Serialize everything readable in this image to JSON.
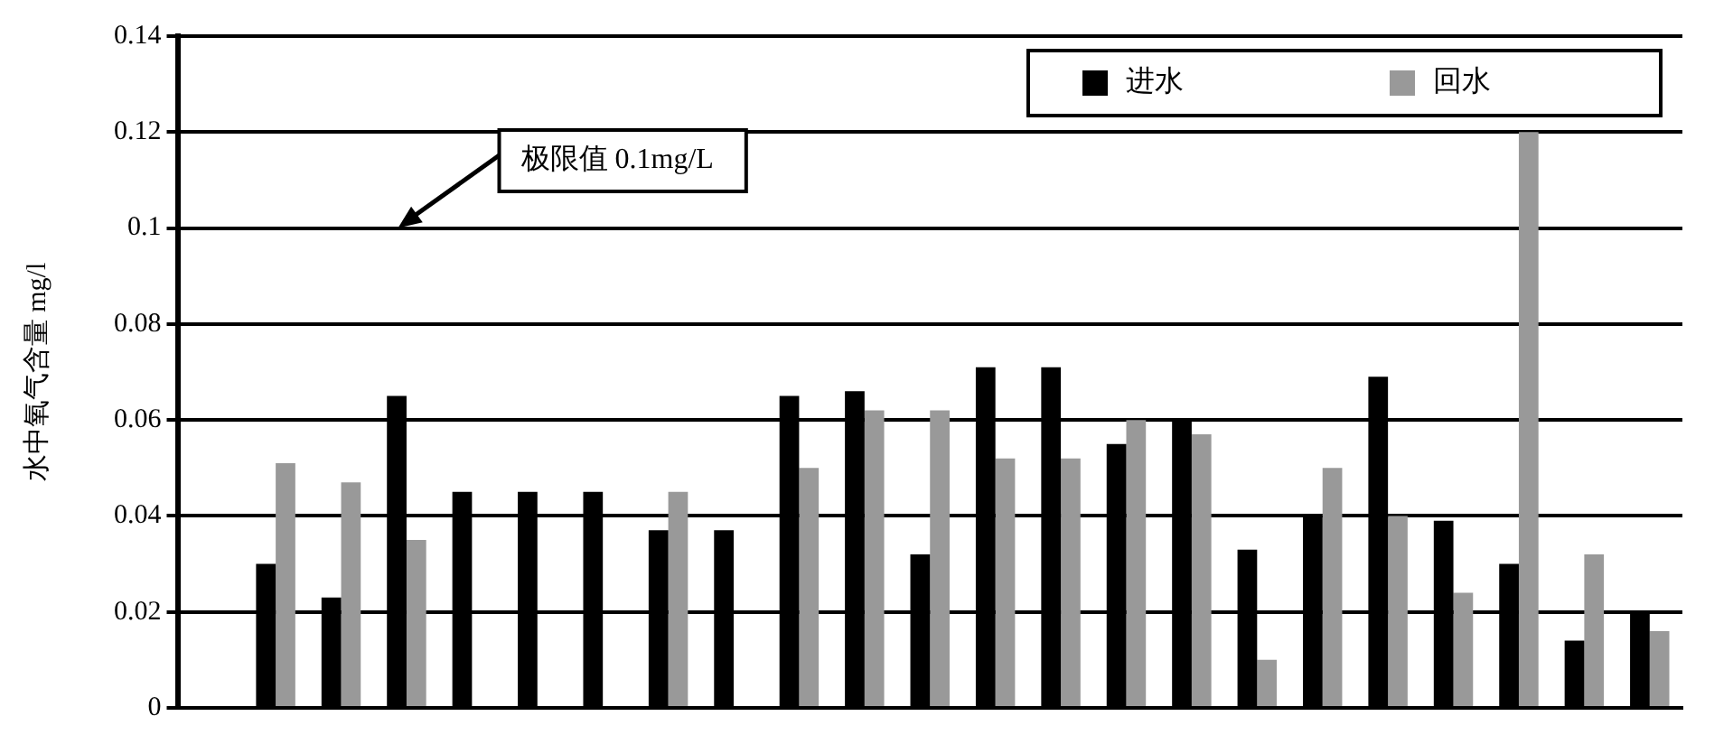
{
  "chart_data": {
    "type": "bar",
    "ylabel": "水中氧气含量 mg/l",
    "categories": [
      null,
      null,
      null,
      null,
      null,
      null,
      null,
      null,
      null,
      null,
      null,
      null,
      null,
      null,
      null,
      null,
      null,
      null,
      null,
      null,
      null,
      null,
      null
    ],
    "series": [
      {
        "name": "进水",
        "color": "#000000",
        "values": [
          null,
          0.03,
          0.023,
          0.065,
          0.045,
          0.045,
          0.045,
          0.037,
          0.037,
          0.065,
          0.066,
          0.032,
          0.071,
          0.071,
          0.055,
          0.06,
          0.033,
          0.04,
          0.069,
          0.039,
          0.03,
          0.014,
          0.02
        ]
      },
      {
        "name": "回水",
        "color": "#999999",
        "values": [
          null,
          0.051,
          0.047,
          0.035,
          null,
          null,
          null,
          0.045,
          null,
          0.05,
          0.062,
          0.062,
          0.052,
          0.052,
          0.06,
          0.057,
          0.01,
          0.05,
          0.04,
          0.024,
          0.12,
          0.032,
          0.016
        ]
      }
    ],
    "ylim": [
      0,
      0.14
    ],
    "yticks": [
      0,
      0.02,
      0.04,
      0.06,
      0.08,
      0.1,
      0.12,
      0.14
    ],
    "grid": "y",
    "legend": "top right",
    "tick_labels": "y",
    "annotations": [
      "极限值 0.1mg/L"
    ]
  }
}
